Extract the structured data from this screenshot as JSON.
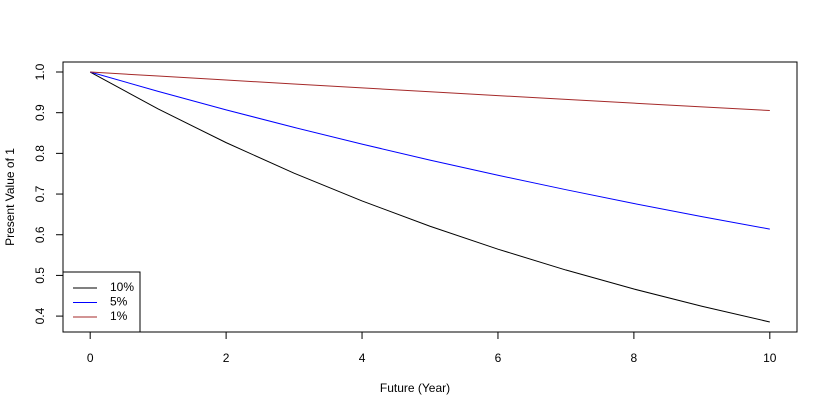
{
  "chart_data": {
    "type": "line",
    "x_label": "Future (Year)",
    "y_label": "Present Value of 1",
    "x": [
      0,
      1,
      2,
      3,
      4,
      5,
      6,
      7,
      8,
      9,
      10
    ],
    "series": [
      {
        "name": "10%",
        "color": "#000000",
        "values": [
          1,
          0.9091,
          0.8264,
          0.7513,
          0.683,
          0.6209,
          0.5645,
          0.5132,
          0.4665,
          0.4241,
          0.3855
        ]
      },
      {
        "name": "5%",
        "color": "#0000ff",
        "values": [
          1,
          0.9524,
          0.907,
          0.8638,
          0.8227,
          0.7835,
          0.7462,
          0.7107,
          0.6768,
          0.6446,
          0.6139
        ]
      },
      {
        "name": "1%",
        "color": "#a52a2a",
        "values": [
          1,
          0.9901,
          0.9803,
          0.9706,
          0.961,
          0.9515,
          0.942,
          0.9327,
          0.9235,
          0.9143,
          0.9053
        ]
      }
    ],
    "xlim": [
      -0.4,
      10.4
    ],
    "xticks": [
      0,
      2,
      4,
      6,
      8,
      10
    ],
    "ylim": [
      0.3609,
      1.0246
    ],
    "yticks": [
      0.4,
      0.5,
      0.6,
      0.7,
      0.8,
      0.9,
      {
        "value": 1,
        "label": "1.0"
      }
    ],
    "legend": "bottomleft"
  }
}
